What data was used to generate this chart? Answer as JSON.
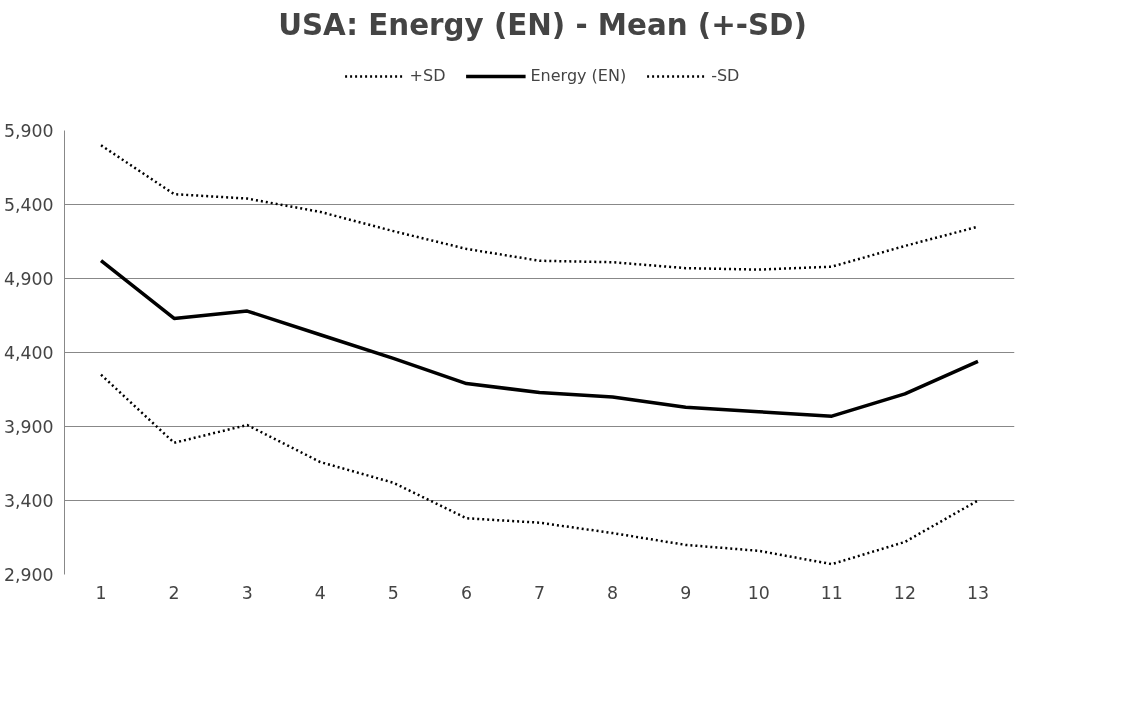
{
  "chart_data": {
    "type": "line",
    "title": "USA: Energy (EN) - Mean (+-SD)",
    "x": [
      1,
      2,
      3,
      4,
      5,
      6,
      7,
      8,
      9,
      10,
      11,
      12,
      13
    ],
    "xlim": [
      0.5,
      13.5
    ],
    "xticks": [
      1,
      2,
      3,
      4,
      5,
      6,
      7,
      8,
      9,
      10,
      11,
      12,
      13
    ],
    "series": [
      {
        "name": "+SD",
        "color": "#000000",
        "line_style": "dotted",
        "values": [
          5800,
          5470,
          5440,
          5350,
          5220,
          5100,
          5020,
          5010,
          4970,
          4960,
          4980,
          5120,
          5250
        ]
      },
      {
        "name": "Energy (EN)",
        "color": "#000000",
        "line_style": "solid",
        "values": [
          5020,
          4630,
          4680,
          4520,
          4360,
          4190,
          4130,
          4100,
          4030,
          4000,
          3970,
          4120,
          4340
        ]
      },
      {
        "name": "-SD",
        "color": "#000000",
        "line_style": "dotted",
        "values": [
          4250,
          3790,
          3910,
          3660,
          3520,
          3280,
          3250,
          3180,
          3100,
          3060,
          2970,
          3120,
          3400
        ]
      }
    ],
    "ylim": [
      2900,
      5900
    ],
    "yticks": [
      {
        "value": 2900,
        "label": "2,900"
      },
      {
        "value": 3400,
        "label": "3,400"
      },
      {
        "value": 3900,
        "label": "3,900"
      },
      {
        "value": 4400,
        "label": "4,400"
      },
      {
        "value": 4900,
        "label": "4,900"
      },
      {
        "value": 5400,
        "label": "5,400"
      },
      {
        "value": 5900,
        "label": "5,900"
      }
    ],
    "grid": "y",
    "legend": "top",
    "marker": "none"
  }
}
